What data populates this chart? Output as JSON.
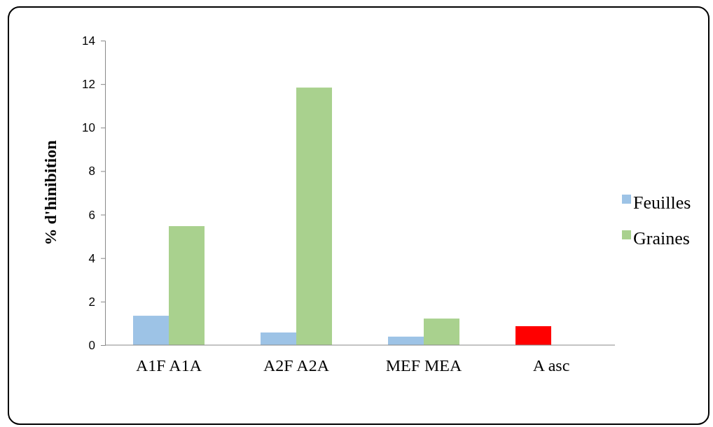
{
  "chart_data": {
    "type": "bar",
    "ylabel": "% d'hinibition",
    "categories": [
      "A1F A1A",
      "A2F A2A",
      "MEF MEA",
      "A asc"
    ],
    "series": [
      {
        "name": "Feuilles",
        "color": "#9dc3e6",
        "colors": [
          "#9dc3e6",
          "#9dc3e6",
          "#9dc3e6",
          "#ff0000"
        ],
        "values": [
          1.35,
          0.58,
          0.39,
          0.87
        ]
      },
      {
        "name": "Graines",
        "color": "#a9d18e",
        "values": [
          5.47,
          11.84,
          1.22,
          null
        ]
      }
    ],
    "ylim": [
      0,
      14
    ],
    "yticks": [
      0,
      2,
      4,
      6,
      8,
      10,
      12,
      14
    ],
    "grid": false,
    "legend": "right"
  }
}
